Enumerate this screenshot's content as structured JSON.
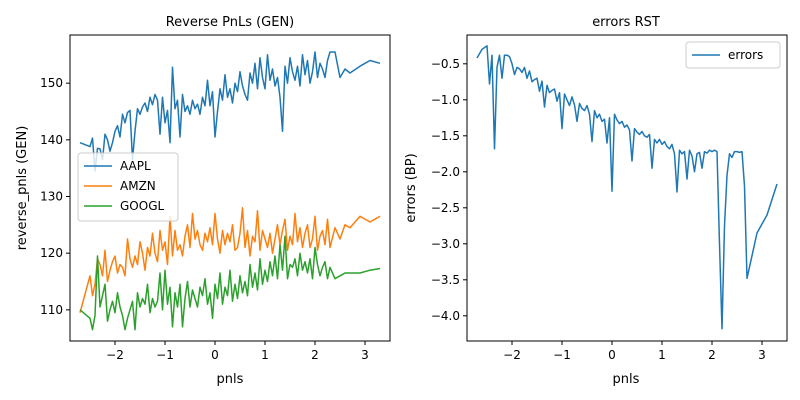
{
  "chart_data": [
    {
      "type": "line",
      "title": "Reverse PnLs (GEN)",
      "xlabel": "pnls",
      "ylabel": "reverse_pnls (GEN)",
      "xlim": [
        -2.9,
        3.5
      ],
      "ylim": [
        104.5,
        158.5
      ],
      "xticks": [
        -2,
        -1,
        0,
        1,
        2,
        3
      ],
      "xtick_labels": [
        "−2",
        "−1",
        "0",
        "1",
        "2",
        "3"
      ],
      "yticks": [
        110,
        120,
        130,
        140,
        150
      ],
      "ytick_labels": [
        "110",
        "120",
        "130",
        "140",
        "150"
      ],
      "grid": false,
      "legend": "center-left",
      "series": [
        {
          "name": "AAPL",
          "color": "#1f77b4",
          "x": [
            -2.7,
            -2.5,
            -2.45,
            -2.4,
            -2.35,
            -2.3,
            -2.25,
            -2.2,
            -2.15,
            -2.1,
            -2.05,
            -2.0,
            -1.95,
            -1.9,
            -1.85,
            -1.8,
            -1.75,
            -1.7,
            -1.65,
            -1.6,
            -1.55,
            -1.5,
            -1.45,
            -1.4,
            -1.35,
            -1.3,
            -1.25,
            -1.2,
            -1.15,
            -1.1,
            -1.05,
            -1.0,
            -0.95,
            -0.9,
            -0.85,
            -0.8,
            -0.75,
            -0.7,
            -0.65,
            -0.6,
            -0.55,
            -0.5,
            -0.45,
            -0.4,
            -0.35,
            -0.3,
            -0.25,
            -0.2,
            -0.15,
            -0.1,
            -0.05,
            0.0,
            0.05,
            0.1,
            0.15,
            0.2,
            0.25,
            0.3,
            0.35,
            0.4,
            0.45,
            0.5,
            0.55,
            0.6,
            0.65,
            0.7,
            0.75,
            0.8,
            0.85,
            0.9,
            0.95,
            1.0,
            1.05,
            1.1,
            1.15,
            1.2,
            1.25,
            1.3,
            1.35,
            1.4,
            1.45,
            1.5,
            1.55,
            1.6,
            1.65,
            1.7,
            1.75,
            1.8,
            1.85,
            1.9,
            1.95,
            2.0,
            2.05,
            2.1,
            2.15,
            2.2,
            2.25,
            2.3,
            2.4,
            2.5,
            2.6,
            2.7,
            2.9,
            3.1,
            3.3
          ],
          "values": [
            139.5,
            138.8,
            140.3,
            134.5,
            138.5,
            138.4,
            136.5,
            141.0,
            140.0,
            138.0,
            139.5,
            141.5,
            142.5,
            140.5,
            144.5,
            143.0,
            144.8,
            145.2,
            136.5,
            141.5,
            145.5,
            144.5,
            145.8,
            146.5,
            145.0,
            147.5,
            146.2,
            148.0,
            147.0,
            141.0,
            147.5,
            143.0,
            145.2,
            139.5,
            152.8,
            145.5,
            147.0,
            140.5,
            148.0,
            145.0,
            146.0,
            144.5,
            147.0,
            145.5,
            146.3,
            144.5,
            147.5,
            146.0,
            150.5,
            146.0,
            148.5,
            140.5,
            145.0,
            149.0,
            147.0,
            151.5,
            147.5,
            149.0,
            146.5,
            150.0,
            148.5,
            152.0,
            149.5,
            148.0,
            147.0,
            151.8,
            150.0,
            153.5,
            149.0,
            154.5,
            151.0,
            149.0,
            155.0,
            150.5,
            152.5,
            149.5,
            151.0,
            147.5,
            141.5,
            153.0,
            150.0,
            154.5,
            152.0,
            150.5,
            153.0,
            149.5,
            155.0,
            151.5,
            154.0,
            150.0,
            152.0,
            155.5,
            151.0,
            153.5,
            152.5,
            151.0,
            154.0,
            155.5,
            155.5,
            151.0,
            152.5,
            151.8,
            153.0,
            154.0,
            153.5
          ]
        },
        {
          "name": "AMZN",
          "color": "#ff7f0e",
          "x": [
            -2.7,
            -2.5,
            -2.45,
            -2.4,
            -2.35,
            -2.3,
            -2.25,
            -2.2,
            -2.15,
            -2.1,
            -2.05,
            -2.0,
            -1.95,
            -1.9,
            -1.85,
            -1.8,
            -1.75,
            -1.7,
            -1.65,
            -1.6,
            -1.55,
            -1.5,
            -1.45,
            -1.4,
            -1.35,
            -1.3,
            -1.25,
            -1.2,
            -1.15,
            -1.1,
            -1.05,
            -1.0,
            -0.95,
            -0.9,
            -0.85,
            -0.8,
            -0.75,
            -0.7,
            -0.65,
            -0.6,
            -0.55,
            -0.5,
            -0.45,
            -0.4,
            -0.35,
            -0.3,
            -0.25,
            -0.2,
            -0.15,
            -0.1,
            -0.05,
            0.0,
            0.05,
            0.1,
            0.15,
            0.2,
            0.25,
            0.3,
            0.35,
            0.4,
            0.45,
            0.5,
            0.55,
            0.6,
            0.65,
            0.7,
            0.75,
            0.8,
            0.85,
            0.9,
            0.95,
            1.0,
            1.05,
            1.1,
            1.15,
            1.2,
            1.25,
            1.3,
            1.35,
            1.4,
            1.45,
            1.5,
            1.55,
            1.6,
            1.65,
            1.7,
            1.75,
            1.8,
            1.85,
            1.9,
            1.95,
            2.0,
            2.05,
            2.1,
            2.15,
            2.2,
            2.25,
            2.3,
            2.4,
            2.5,
            2.6,
            2.7,
            2.9,
            3.1,
            3.3
          ],
          "values": [
            109.5,
            116.0,
            112.5,
            114.5,
            119.0,
            118.0,
            116.0,
            120.5,
            115.0,
            117.0,
            118.5,
            119.5,
            116.5,
            118.0,
            117.5,
            116.0,
            122.5,
            119.0,
            117.5,
            119.5,
            118.0,
            122.0,
            120.0,
            117.0,
            121.0,
            119.5,
            123.5,
            120.0,
            118.5,
            124.0,
            120.5,
            122.0,
            118.0,
            126.5,
            119.5,
            124.0,
            120.5,
            121.5,
            119.5,
            123.0,
            125.0,
            121.0,
            127.0,
            122.5,
            124.0,
            121.5,
            120.5,
            123.5,
            122.0,
            124.5,
            121.5,
            127.0,
            122.5,
            120.0,
            124.0,
            121.5,
            123.5,
            122.0,
            125.0,
            120.5,
            121.0,
            123.5,
            128.0,
            121.0,
            124.0,
            119.5,
            123.0,
            122.0,
            127.5,
            120.5,
            124.0,
            122.5,
            121.0,
            123.5,
            120.0,
            122.5,
            125.0,
            121.5,
            124.0,
            126.0,
            120.5,
            123.0,
            121.5,
            127.0,
            122.0,
            124.5,
            121.0,
            123.5,
            125.0,
            121.0,
            122.5,
            126.5,
            120.5,
            123.0,
            124.0,
            121.5,
            126.0,
            121.0,
            124.5,
            122.5,
            125.0,
            124.5,
            126.5,
            125.5,
            126.5
          ]
        },
        {
          "name": "GOOGL",
          "color": "#2ca02c",
          "x": [
            -2.7,
            -2.5,
            -2.45,
            -2.4,
            -2.35,
            -2.3,
            -2.25,
            -2.2,
            -2.15,
            -2.1,
            -2.05,
            -2.0,
            -1.95,
            -1.9,
            -1.85,
            -1.8,
            -1.75,
            -1.7,
            -1.65,
            -1.6,
            -1.55,
            -1.5,
            -1.45,
            -1.4,
            -1.35,
            -1.3,
            -1.25,
            -1.2,
            -1.15,
            -1.1,
            -1.05,
            -1.0,
            -0.95,
            -0.9,
            -0.85,
            -0.8,
            -0.75,
            -0.7,
            -0.65,
            -0.6,
            -0.55,
            -0.5,
            -0.45,
            -0.4,
            -0.35,
            -0.3,
            -0.25,
            -0.2,
            -0.15,
            -0.1,
            -0.05,
            0.0,
            0.05,
            0.1,
            0.15,
            0.2,
            0.25,
            0.3,
            0.35,
            0.4,
            0.45,
            0.5,
            0.55,
            0.6,
            0.65,
            0.7,
            0.75,
            0.8,
            0.85,
            0.9,
            0.95,
            1.0,
            1.05,
            1.1,
            1.15,
            1.2,
            1.25,
            1.3,
            1.35,
            1.4,
            1.45,
            1.5,
            1.55,
            1.6,
            1.65,
            1.7,
            1.75,
            1.8,
            1.85,
            1.9,
            1.95,
            2.0,
            2.05,
            2.1,
            2.15,
            2.2,
            2.25,
            2.3,
            2.4,
            2.5,
            2.6,
            2.7,
            2.9,
            3.1,
            3.3
          ],
          "values": [
            110.0,
            108.5,
            106.5,
            109.0,
            119.5,
            110.5,
            112.5,
            114.5,
            108.0,
            110.0,
            111.5,
            109.5,
            113.0,
            110.5,
            109.0,
            106.5,
            108.5,
            110.0,
            111.5,
            106.5,
            113.0,
            110.5,
            112.0,
            111.0,
            114.5,
            109.5,
            112.0,
            110.5,
            111.5,
            116.5,
            110.0,
            117.0,
            111.0,
            114.0,
            107.0,
            113.0,
            110.5,
            114.5,
            107.0,
            112.0,
            115.0,
            110.5,
            113.5,
            112.0,
            110.5,
            114.0,
            112.5,
            115.5,
            111.0,
            113.0,
            108.5,
            114.5,
            112.0,
            116.5,
            111.0,
            114.0,
            112.5,
            117.0,
            111.5,
            114.5,
            112.0,
            116.0,
            113.0,
            115.0,
            112.5,
            118.0,
            114.0,
            116.5,
            113.5,
            119.0,
            114.5,
            117.0,
            115.0,
            118.5,
            116.0,
            119.5,
            115.5,
            121.5,
            117.0,
            123.0,
            115.5,
            118.0,
            117.5,
            119.0,
            116.0,
            120.0,
            117.0,
            118.5,
            116.5,
            119.0,
            115.5,
            121.0,
            118.0,
            116.0,
            117.5,
            118.5,
            115.5,
            117.5,
            115.5,
            116.0,
            116.5,
            116.5,
            116.5,
            117.0,
            117.3
          ]
        }
      ]
    },
    {
      "type": "line",
      "title": "errors RST",
      "xlabel": "pnls",
      "ylabel": "errors (BP)",
      "xlim": [
        -2.9,
        3.5
      ],
      "ylim": [
        -4.35,
        -0.1
      ],
      "xticks": [
        -2,
        -1,
        0,
        1,
        2,
        3
      ],
      "xtick_labels": [
        "−2",
        "−1",
        "0",
        "1",
        "2",
        "3"
      ],
      "yticks": [
        -4.0,
        -3.5,
        -3.0,
        -2.5,
        -2.0,
        -1.5,
        -1.0,
        -0.5
      ],
      "ytick_labels": [
        "−4.0",
        "−3.5",
        "−3.0",
        "−2.5",
        "−2.0",
        "−1.5",
        "−1.0",
        "−0.5"
      ],
      "grid": false,
      "legend": "top-right",
      "series": [
        {
          "name": "errors",
          "color": "#1f77b4",
          "x": [
            -2.7,
            -2.6,
            -2.5,
            -2.45,
            -2.4,
            -2.35,
            -2.3,
            -2.25,
            -2.2,
            -2.15,
            -2.1,
            -2.05,
            -2.0,
            -1.95,
            -1.9,
            -1.85,
            -1.8,
            -1.75,
            -1.7,
            -1.65,
            -1.6,
            -1.55,
            -1.5,
            -1.45,
            -1.4,
            -1.35,
            -1.3,
            -1.25,
            -1.2,
            -1.15,
            -1.1,
            -1.05,
            -1.0,
            -0.95,
            -0.9,
            -0.85,
            -0.8,
            -0.75,
            -0.7,
            -0.65,
            -0.6,
            -0.55,
            -0.5,
            -0.45,
            -0.4,
            -0.35,
            -0.3,
            -0.25,
            -0.2,
            -0.15,
            -0.1,
            -0.05,
            0.0,
            0.05,
            0.1,
            0.15,
            0.2,
            0.25,
            0.3,
            0.35,
            0.4,
            0.45,
            0.5,
            0.55,
            0.6,
            0.65,
            0.7,
            0.75,
            0.8,
            0.85,
            0.9,
            0.95,
            1.0,
            1.05,
            1.1,
            1.15,
            1.2,
            1.25,
            1.3,
            1.35,
            1.4,
            1.45,
            1.5,
            1.55,
            1.6,
            1.65,
            1.7,
            1.75,
            1.8,
            1.85,
            1.9,
            1.95,
            2.0,
            2.05,
            2.1,
            2.15,
            2.2,
            2.25,
            2.3,
            2.35,
            2.4,
            2.45,
            2.5,
            2.55,
            2.6,
            2.65,
            2.7,
            2.9,
            3.1,
            3.3
          ],
          "values": [
            -0.42,
            -0.3,
            -0.25,
            -0.78,
            -0.38,
            -1.68,
            -0.55,
            -0.38,
            -0.7,
            -0.38,
            -0.38,
            -0.4,
            -0.5,
            -0.65,
            -0.55,
            -0.57,
            -0.62,
            -0.55,
            -0.7,
            -0.6,
            -0.75,
            -0.72,
            -0.7,
            -0.88,
            -0.74,
            -1.1,
            -0.8,
            -0.9,
            -0.87,
            -0.85,
            -1.02,
            -0.9,
            -1.4,
            -0.92,
            -1.0,
            -1.08,
            -0.96,
            -1.07,
            -1.3,
            -1.05,
            -1.12,
            -1.15,
            -1.08,
            -1.2,
            -1.58,
            -1.15,
            -1.25,
            -1.2,
            -1.3,
            -1.27,
            -1.6,
            -1.25,
            -2.27,
            -1.2,
            -1.28,
            -1.33,
            -1.3,
            -1.38,
            -1.35,
            -1.42,
            -1.85,
            -1.4,
            -1.45,
            -1.48,
            -1.44,
            -1.5,
            -1.52,
            -1.48,
            -1.95,
            -1.55,
            -1.6,
            -1.55,
            -1.62,
            -1.58,
            -1.65,
            -1.68,
            -1.62,
            -1.75,
            -2.28,
            -1.7,
            -1.75,
            -1.72,
            -2.1,
            -1.7,
            -1.78,
            -2.0,
            -1.75,
            -1.73,
            -1.95,
            -1.72,
            -1.74,
            -1.7,
            -1.72,
            -1.7,
            -1.72,
            -3.0,
            -4.18,
            -2.75,
            -2.05,
            -1.75,
            -1.8,
            -1.72,
            -1.72,
            -1.73,
            -1.72,
            -2.2,
            -3.48,
            -2.85,
            -2.6,
            -2.17
          ]
        }
      ]
    }
  ]
}
